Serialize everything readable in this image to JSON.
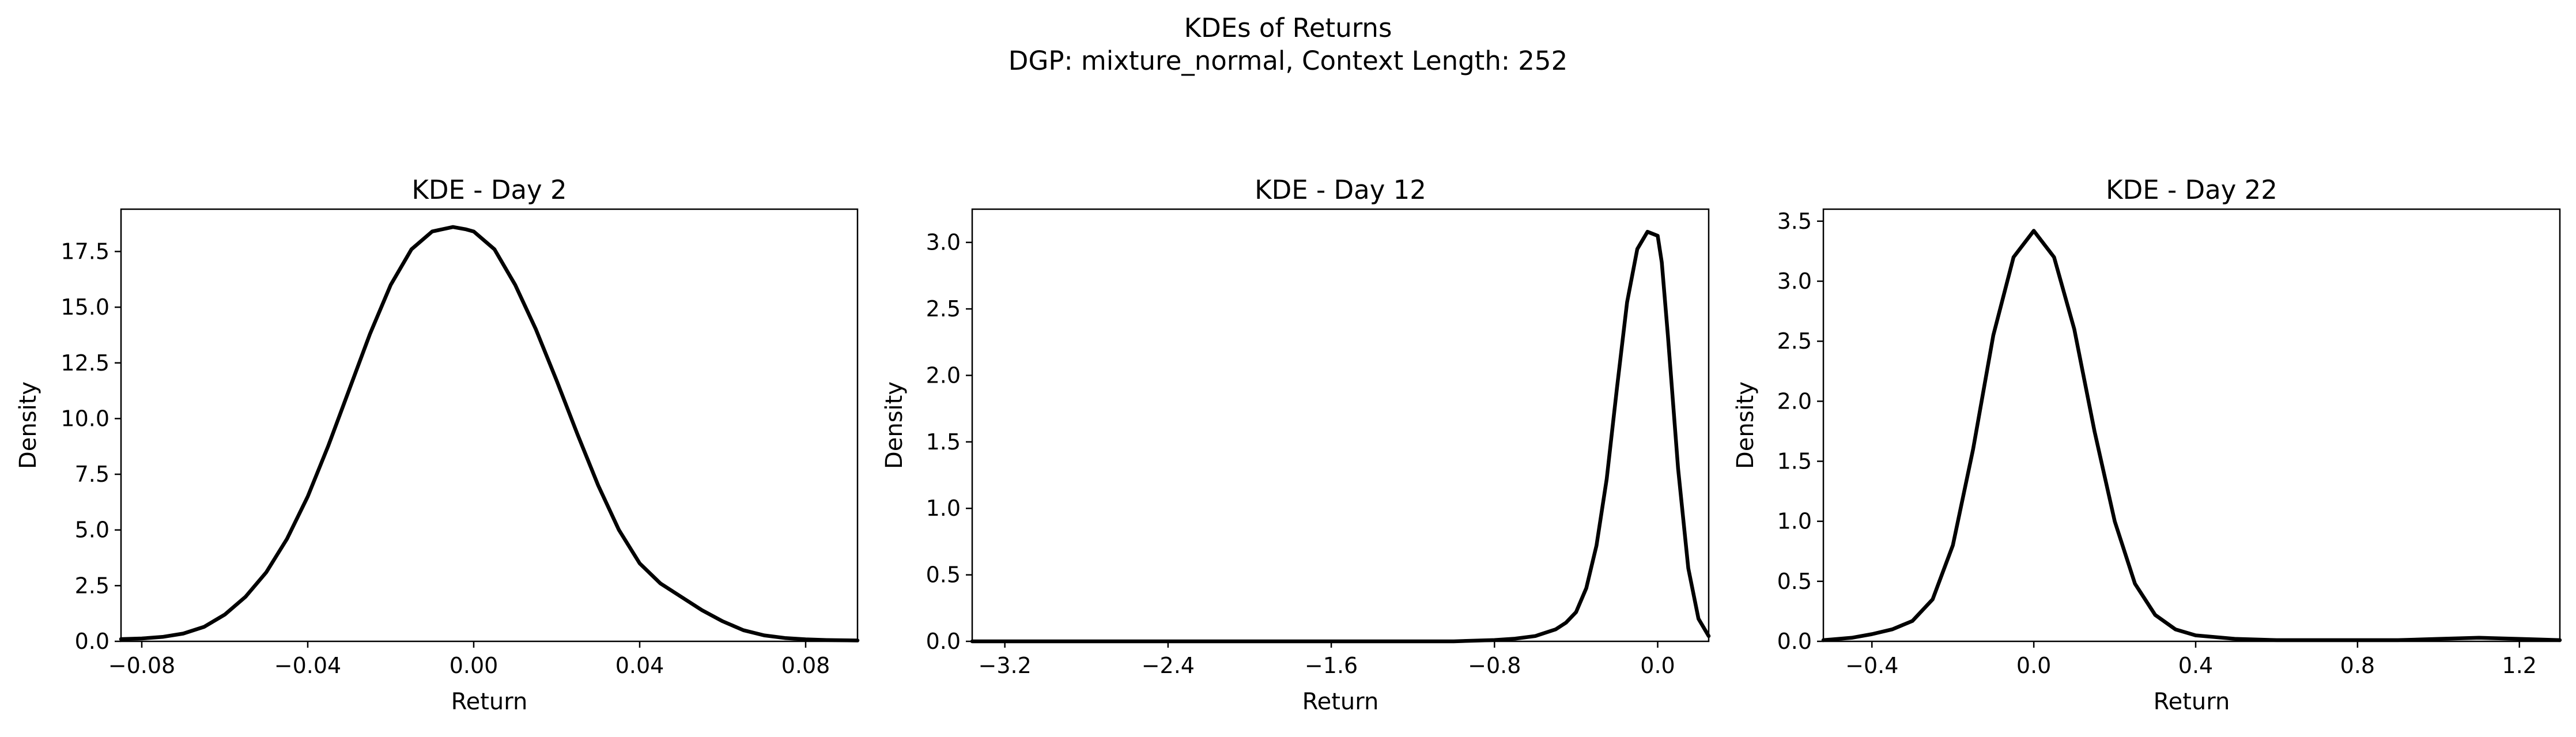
{
  "figure": {
    "title": "KDEs of Returns",
    "subtitle": "DGP: mixture_normal, Context Length: 252"
  },
  "chart_data": [
    {
      "type": "line",
      "title": "KDE - Day 2",
      "xlabel": "Return",
      "ylabel": "Density",
      "xlim": [
        -0.085,
        0.0925
      ],
      "ylim": [
        0,
        19.4
      ],
      "xticks": [
        -0.08,
        -0.04,
        0.0,
        0.04,
        0.08
      ],
      "xtick_labels": [
        "−0.08",
        "−0.04",
        "0.00",
        "0.04",
        "0.08"
      ],
      "yticks": [
        0,
        2.5,
        5,
        7.5,
        10,
        12.5,
        15,
        17.5
      ],
      "ytick_labels": [
        "0.0",
        "2.5",
        "5.0",
        "7.5",
        "10.0",
        "12.5",
        "15.0",
        "17.5"
      ],
      "grid": false,
      "color": "#000000",
      "series": [
        {
          "x": [
            -0.085,
            -0.08,
            -0.075,
            -0.07,
            -0.065,
            -0.06,
            -0.055,
            -0.05,
            -0.045,
            -0.04,
            -0.035,
            -0.03,
            -0.025,
            -0.02,
            -0.015,
            -0.01,
            -0.005,
            -0.002,
            0.0,
            0.005,
            0.01,
            0.015,
            0.02,
            0.025,
            0.03,
            0.035,
            0.04,
            0.045,
            0.05,
            0.055,
            0.06,
            0.065,
            0.07,
            0.075,
            0.08,
            0.085,
            0.0925
          ],
          "y": [
            0.1,
            0.13,
            0.2,
            0.35,
            0.65,
            1.2,
            2.0,
            3.1,
            4.6,
            6.5,
            8.8,
            11.3,
            13.8,
            16.0,
            17.6,
            18.4,
            18.6,
            18.5,
            18.4,
            17.6,
            16.0,
            14.0,
            11.7,
            9.3,
            7.0,
            5.0,
            3.5,
            2.6,
            2.0,
            1.4,
            0.9,
            0.5,
            0.27,
            0.15,
            0.09,
            0.06,
            0.04
          ]
        }
      ]
    },
    {
      "type": "line",
      "title": "KDE - Day 12",
      "xlabel": "Return",
      "ylabel": "Density",
      "xlim": [
        -3.36,
        0.25
      ],
      "ylim": [
        0,
        3.25
      ],
      "xticks": [
        -3.2,
        -2.4,
        -1.6,
        -0.8,
        0.0
      ],
      "xtick_labels": [
        "−3.2",
        "−2.4",
        "−1.6",
        "−0.8",
        "0.0"
      ],
      "yticks": [
        0,
        0.5,
        1.0,
        1.5,
        2.0,
        2.5,
        3.0
      ],
      "ytick_labels": [
        "0.0",
        "0.5",
        "1.0",
        "1.5",
        "2.0",
        "2.5",
        "3.0"
      ],
      "grid": false,
      "color": "#000000",
      "series": [
        {
          "x": [
            -3.36,
            -3.0,
            -2.5,
            -2.0,
            -1.5,
            -1.0,
            -0.8,
            -0.7,
            -0.6,
            -0.5,
            -0.45,
            -0.4,
            -0.35,
            -0.3,
            -0.25,
            -0.2,
            -0.15,
            -0.1,
            -0.05,
            0.0,
            0.02,
            0.05,
            0.1,
            0.15,
            0.2,
            0.25
          ],
          "y": [
            0.0,
            0.0,
            0.0,
            0.0,
            0.0,
            0.0,
            0.01,
            0.02,
            0.04,
            0.09,
            0.14,
            0.22,
            0.4,
            0.72,
            1.22,
            1.9,
            2.55,
            2.95,
            3.08,
            3.05,
            2.85,
            2.3,
            1.3,
            0.55,
            0.17,
            0.04
          ]
        }
      ]
    },
    {
      "type": "line",
      "title": "KDE - Day 22",
      "xlabel": "Return",
      "ylabel": "Density",
      "xlim": [
        -0.52,
        1.3
      ],
      "ylim": [
        0,
        3.6
      ],
      "xticks": [
        -0.4,
        0.0,
        0.4,
        0.8,
        1.2
      ],
      "xtick_labels": [
        "−0.4",
        "0.0",
        "0.4",
        "0.8",
        "1.2"
      ],
      "yticks": [
        0,
        0.5,
        1.0,
        1.5,
        2.0,
        2.5,
        3.0,
        3.5
      ],
      "ytick_labels": [
        "0.0",
        "0.5",
        "1.0",
        "1.5",
        "2.0",
        "2.5",
        "3.0",
        "3.5"
      ],
      "grid": false,
      "color": "#000000",
      "series": [
        {
          "x": [
            -0.52,
            -0.45,
            -0.4,
            -0.35,
            -0.3,
            -0.25,
            -0.2,
            -0.15,
            -0.1,
            -0.05,
            0.0,
            0.05,
            0.1,
            0.15,
            0.2,
            0.25,
            0.3,
            0.35,
            0.4,
            0.5,
            0.6,
            0.7,
            0.8,
            0.9,
            1.0,
            1.1,
            1.2,
            1.3
          ],
          "y": [
            0.01,
            0.03,
            0.06,
            0.1,
            0.17,
            0.35,
            0.8,
            1.6,
            2.55,
            3.2,
            3.42,
            3.2,
            2.6,
            1.75,
            1.0,
            0.48,
            0.22,
            0.1,
            0.05,
            0.02,
            0.01,
            0.01,
            0.01,
            0.01,
            0.02,
            0.03,
            0.02,
            0.01
          ]
        }
      ]
    }
  ]
}
